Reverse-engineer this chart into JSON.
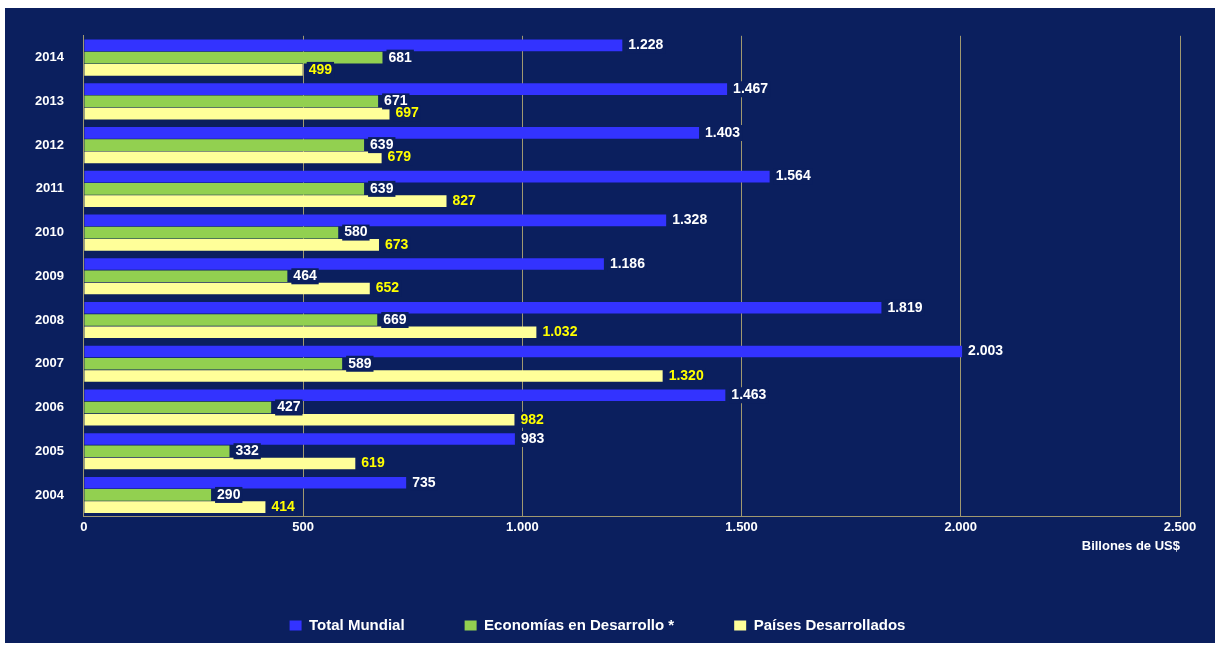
{
  "chart_data": {
    "type": "bar",
    "orientation": "horizontal",
    "xlabel": "Billones de US$",
    "categories": [
      "2014",
      "2013",
      "2012",
      "2011",
      "2010",
      "2009",
      "2008",
      "2007",
      "2006",
      "2005",
      "2004"
    ],
    "series": [
      {
        "name": "Total Mundial",
        "color": "#3333ff",
        "values": [
          1228,
          1467,
          1403,
          1564,
          1328,
          1186,
          1819,
          2003,
          1463,
          983,
          735
        ],
        "value_labels": [
          "1.228",
          "1.467",
          "1.403",
          "1.564",
          "1.328",
          "1.186",
          "1.819",
          "2.003",
          "1.463",
          "983",
          "735"
        ]
      },
      {
        "name": "Economías en Desarrollo *",
        "color": "#92d050",
        "values": [
          681,
          671,
          639,
          639,
          580,
          464,
          669,
          589,
          427,
          332,
          290
        ],
        "value_labels": [
          "681",
          "671",
          "639",
          "639",
          "580",
          "464",
          "669",
          "589",
          "427",
          "332",
          "290"
        ]
      },
      {
        "name": "Países Desarrollados",
        "color": "#ffff99",
        "values": [
          499,
          697,
          679,
          827,
          673,
          652,
          1032,
          1320,
          982,
          619,
          414
        ],
        "value_labels": [
          "499",
          "697",
          "679",
          "827",
          "673",
          "652",
          "1.032",
          "1.320",
          "982",
          "619",
          "414"
        ]
      }
    ],
    "xlim": [
      0,
      2500
    ],
    "xticks": [
      0,
      500,
      {
        "value": 1000,
        "label": "1.000"
      },
      {
        "value": 1500,
        "label": "1.500"
      },
      {
        "value": 2000,
        "label": "2.000"
      },
      {
        "value": 2500,
        "label": "2.500"
      }
    ],
    "grid": "x",
    "legend": "bottom"
  }
}
